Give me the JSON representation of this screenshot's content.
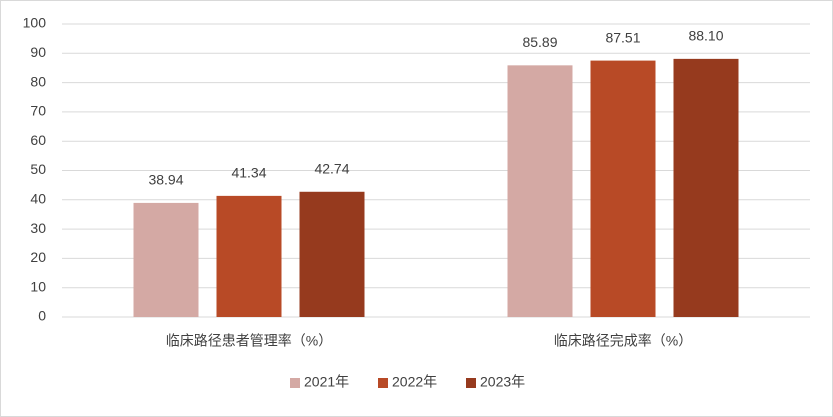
{
  "chart_data": {
    "type": "bar",
    "categories": [
      "临床路径患者管理率（%）",
      "临床路径完成率（%）"
    ],
    "series": [
      {
        "name": "2021年",
        "color": "#d4a9a4",
        "values": [
          38.94,
          85.89
        ]
      },
      {
        "name": "2022年",
        "color": "#b84a26",
        "values": [
          41.34,
          87.51
        ]
      },
      {
        "name": "2023年",
        "color": "#963a1e",
        "values": [
          42.74,
          88.1
        ],
        "value_labels": [
          "42.74",
          "88.10"
        ]
      }
    ],
    "ylim": [
      0,
      100
    ],
    "yticks": [
      0,
      10,
      20,
      30,
      40,
      50,
      60,
      70,
      80,
      90,
      100
    ],
    "grid": true,
    "legend": "bottom"
  }
}
